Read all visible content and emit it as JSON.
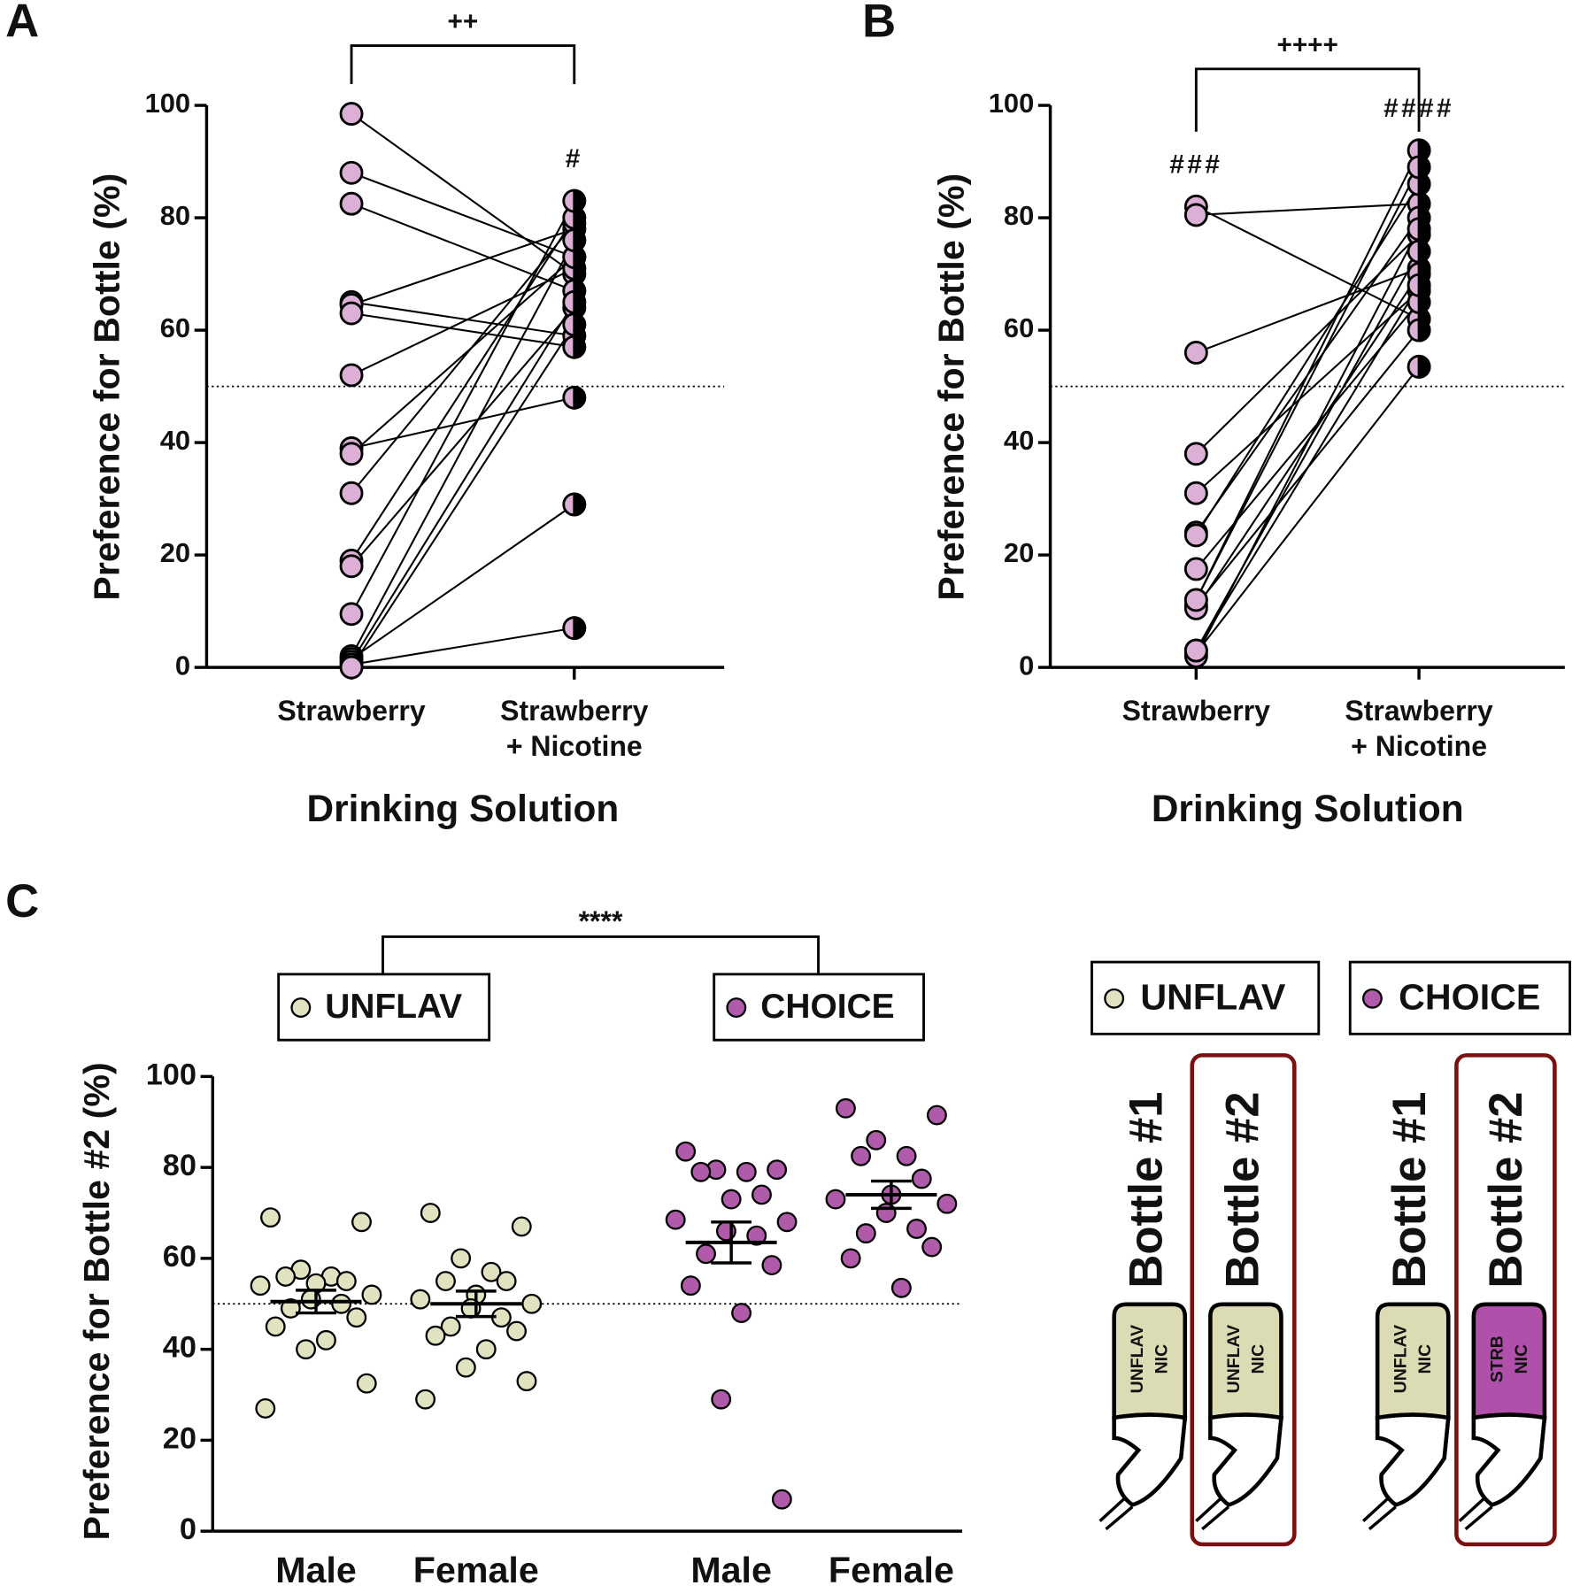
{
  "chart_data": [
    {
      "type": "paired",
      "panel": "A",
      "ylabel": "Preference for Bottle (%)",
      "xlabel": "Drinking Solution",
      "categories": [
        [
          "Strawberry"
        ],
        [
          "Strawberry",
          "+ Nicotine"
        ]
      ],
      "values": [
        [
          98.5,
          88,
          82.5,
          65,
          64.5,
          63,
          52,
          39,
          38,
          31,
          19,
          18,
          9.5,
          2,
          1.5,
          1,
          0.5,
          0
        ],
        [
          70,
          73,
          67,
          59,
          78,
          57,
          71,
          48,
          73,
          79,
          80,
          64,
          83,
          76,
          29,
          65,
          7,
          61
        ]
      ],
      "ylim": [
        0,
        100
      ],
      "yticks": [
        0,
        20,
        40,
        60,
        80,
        100
      ],
      "reference_line": 50,
      "color": "#dcb0d6",
      "half_color": "#000000",
      "bracket_label": "++",
      "annotations": [
        {
          "text": "#",
          "category": 1
        }
      ]
    },
    {
      "type": "paired",
      "panel": "B",
      "ylabel": "Preference for Bottle (%)",
      "xlabel": "Drinking Solution",
      "categories": [
        [
          "Strawberry"
        ],
        [
          "Strawberry",
          "+ Nicotine"
        ]
      ],
      "values": [
        [
          82,
          80.5,
          56,
          38,
          31,
          24,
          23.5,
          17.5,
          12,
          11,
          10.5,
          3,
          2.5,
          2,
          12,
          3
        ],
        [
          62,
          82.5,
          71,
          77,
          67,
          80,
          86,
          65,
          92,
          60,
          70,
          74,
          53.5,
          78,
          89,
          68
        ]
      ],
      "ylim": [
        0,
        100
      ],
      "yticks": [
        0,
        20,
        40,
        60,
        80,
        100
      ],
      "reference_line": 50,
      "color": "#dcb0d6",
      "half_color": "#000000",
      "bracket_label": "++++",
      "annotations": [
        {
          "text": "###",
          "category": 0
        },
        {
          "text": "####",
          "category": 1
        }
      ]
    },
    {
      "type": "dot_plot",
      "panel": "C",
      "ylabel": "Preference for Bottle #2 (%)",
      "ylim": [
        0,
        100
      ],
      "yticks": [
        0,
        20,
        40,
        60,
        80,
        100
      ],
      "reference_line": 50,
      "bracket_label": "****",
      "groups": [
        {
          "name": "UNFLAV",
          "color": "#e0e2c0",
          "categories": [
            "Male",
            "Female"
          ],
          "values": [
            [
              69,
              68,
              57.5,
              56,
              56,
              55,
              54.5,
              54,
              52,
              51,
              50,
              49,
              47,
              45,
              42,
              40,
              32.5,
              27
            ],
            [
              70,
              67,
              60,
              57,
              55,
              55,
              52,
              51,
              50,
              49,
              47,
              45,
              44,
              43,
              40,
              36,
              33,
              29
            ]
          ],
          "means": [
            50.5,
            50
          ],
          "sems": [
            2.5,
            2.8
          ]
        },
        {
          "name": "CHOICE",
          "color": "#b05aaa",
          "categories": [
            "Male",
            "Female"
          ],
          "values": [
            [
              83.5,
              79.5,
              79.5,
              79,
              79,
              74,
              73,
              68.5,
              68,
              66,
              65,
              61,
              58.5,
              54,
              48,
              29,
              7
            ],
            [
              93,
              91.5,
              86,
              82.5,
              82.5,
              77.5,
              74,
              73,
              72,
              70,
              66.5,
              65.5,
              62.5,
              60,
              53.5
            ]
          ],
          "means": [
            63.5,
            74
          ],
          "sems": [
            4.5,
            3
          ]
        }
      ]
    }
  ],
  "diagram": {
    "groups": [
      {
        "name": "UNFLAV",
        "color": "#e0e2c0",
        "bottles": [
          {
            "title": "Bottle #1",
            "label": [
              "UNFLAV",
              "NIC"
            ],
            "color": "#dcdcb4"
          },
          {
            "title": "Bottle #2",
            "label": [
              "UNFLAV",
              "NIC"
            ],
            "color": "#dcdcb4"
          }
        ]
      },
      {
        "name": "CHOICE",
        "color": "#b05aaa",
        "bottles": [
          {
            "title": "Bottle #1",
            "label": [
              "UNFLAV",
              "NIC"
            ],
            "color": "#dcdcb4"
          },
          {
            "title": "Bottle #2",
            "label": [
              "STRB",
              "NIC"
            ],
            "color": "#b050aa"
          }
        ]
      }
    ]
  }
}
